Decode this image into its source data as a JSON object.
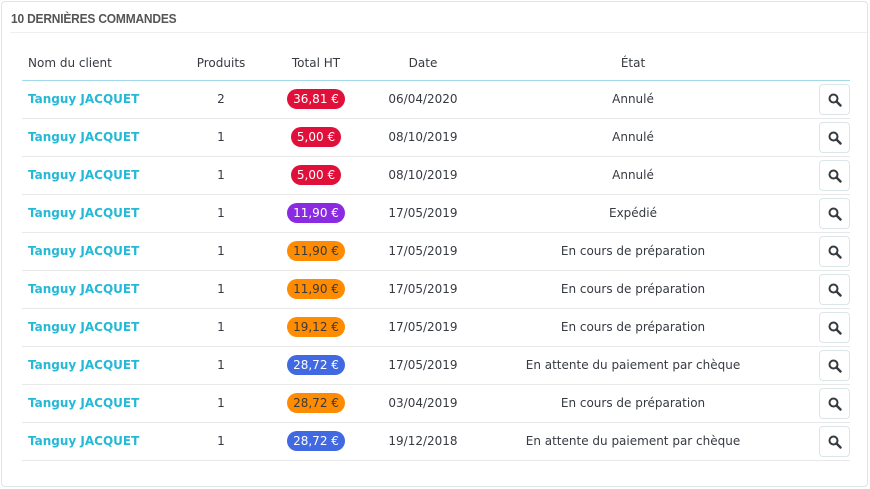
{
  "panel": {
    "title": "10 DERNIÈRES COMMANDES"
  },
  "table": {
    "headers": [
      "Nom du client",
      "Produits",
      "Total HT",
      "Date",
      "État"
    ],
    "rows": [
      {
        "client": "Tanguy JACQUET",
        "products": "2",
        "total": "36,81 €",
        "total_bg": "#e0103a",
        "total_fg": "#ffffff",
        "date": "06/04/2020",
        "state": "Annulé"
      },
      {
        "client": "Tanguy JACQUET",
        "products": "1",
        "total": "5,00 €",
        "total_bg": "#e0103a",
        "total_fg": "#ffffff",
        "date": "08/10/2019",
        "state": "Annulé"
      },
      {
        "client": "Tanguy JACQUET",
        "products": "1",
        "total": "5,00 €",
        "total_bg": "#e0103a",
        "total_fg": "#ffffff",
        "date": "08/10/2019",
        "state": "Annulé"
      },
      {
        "client": "Tanguy JACQUET",
        "products": "1",
        "total": "11,90 €",
        "total_bg": "#8a2be2",
        "total_fg": "#ffffff",
        "date": "17/05/2019",
        "state": "Expédié"
      },
      {
        "client": "Tanguy JACQUET",
        "products": "1",
        "total": "11,90 €",
        "total_bg": "#ff8c00",
        "total_fg": "#363a41",
        "date": "17/05/2019",
        "state": "En cours de préparation"
      },
      {
        "client": "Tanguy JACQUET",
        "products": "1",
        "total": "11,90 €",
        "total_bg": "#ff8c00",
        "total_fg": "#363a41",
        "date": "17/05/2019",
        "state": "En cours de préparation"
      },
      {
        "client": "Tanguy JACQUET",
        "products": "1",
        "total": "19,12 €",
        "total_bg": "#ff8c00",
        "total_fg": "#363a41",
        "date": "17/05/2019",
        "state": "En cours de préparation"
      },
      {
        "client": "Tanguy JACQUET",
        "products": "1",
        "total": "28,72 €",
        "total_bg": "#4169e1",
        "total_fg": "#ffffff",
        "date": "17/05/2019",
        "state": "En attente du paiement par chèque"
      },
      {
        "client": "Tanguy JACQUET",
        "products": "1",
        "total": "28,72 €",
        "total_bg": "#ff8c00",
        "total_fg": "#363a41",
        "date": "03/04/2019",
        "state": "En cours de préparation"
      },
      {
        "client": "Tanguy JACQUET",
        "products": "1",
        "total": "28,72 €",
        "total_bg": "#4169e1",
        "total_fg": "#ffffff",
        "date": "19/12/2018",
        "state": "En attente du paiement par chèque"
      }
    ],
    "action_icon": "search-icon"
  }
}
